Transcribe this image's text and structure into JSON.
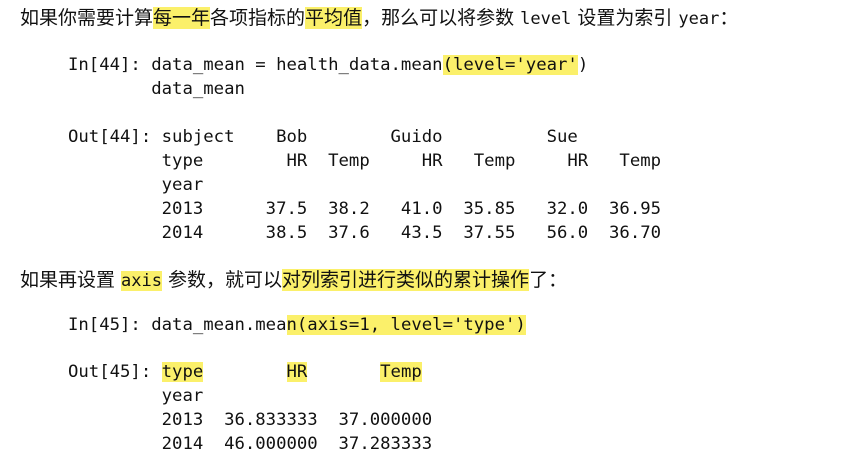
{
  "para1": {
    "a": "如果你需要计算",
    "h1": "每一年",
    "b": "各项指标的",
    "h2": "平均值",
    "c": "，那么可以将参数 ",
    "code": "level",
    "d": " 设置为索引 ",
    "code2": "year",
    "e": "："
  },
  "in44": {
    "line1_pre": "In[44]: data_mean = health_data.mean",
    "line1_hl": "(level='year'",
    "line1_post": ")",
    "line2": "        data_mean"
  },
  "out44": {
    "line1": "Out[44]: subject    Bob        Guido          Sue",
    "line2": "         type        HR  Temp     HR   Temp     HR   Temp",
    "line3": "         year",
    "line4": "         2013      37.5  38.2   41.0  35.85   32.0  36.95",
    "line5": "         2014      38.5  37.6   43.5  37.55   56.0  36.70"
  },
  "para2": {
    "a": "如果再设置 ",
    "code": "axis",
    "b": " 参数，就可以",
    "h1": "对列索引进行类似的累计操作",
    "c": "了："
  },
  "in45": {
    "pre": "In[45]: data_mean.mea",
    "hl": "n(axis=1, level='type')"
  },
  "out45": {
    "prefix": "Out[45]: ",
    "h_type": "type",
    "gap1": "        ",
    "h_hr": "HR",
    "gap2": "       ",
    "h_temp": "Temp",
    "line2": "         year",
    "line3": "         2013  36.833333  37.000000",
    "line4": "         2014  46.000000  37.283333"
  }
}
